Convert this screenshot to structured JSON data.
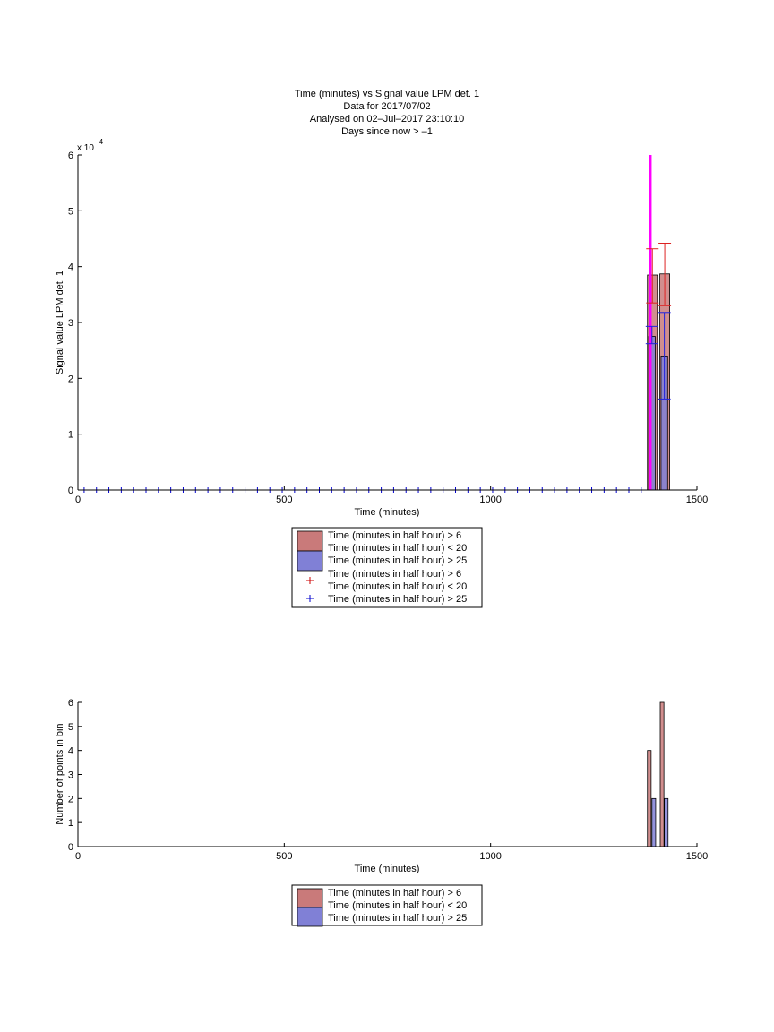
{
  "colors": {
    "red_fill": "#c97a7a",
    "blue_fill": "#8080d6",
    "red_mark": "#cc0000",
    "blue_mark": "#0000cc",
    "magenta_line": "#ff00ff",
    "red_errbar": "#dd2222",
    "blue_errbar": "#2222dd"
  },
  "chart_data": [
    {
      "type": "bar",
      "title_lines": [
        "Time (minutes) vs Signal value LPM det. 1",
        "Data for 2017/07/02",
        "Analysed on 02–Jul–2017 23:10:10",
        "Days since now > –1"
      ],
      "xlabel": "Time (minutes)",
      "ylabel": "Signal value LPM det. 1",
      "y_exponent_label": "x 10",
      "y_exponent": "−4",
      "xlim": [
        0,
        1500
      ],
      "ylim": [
        0,
        6
      ],
      "x_ticks": [
        "0",
        "500",
        "1000",
        "1500"
      ],
      "x_tick_values": [
        0,
        500,
        1000,
        1500
      ],
      "y_ticks": [
        "0",
        "1",
        "2",
        "3",
        "4",
        "5",
        "6"
      ],
      "y_tick_values": [
        0,
        1,
        2,
        3,
        4,
        5,
        6
      ],
      "grid": false,
      "legend_position": "below",
      "legend": [
        "Time (minutes in half hour) > 6",
        "Time (minutes in half hour) < 20",
        "Time (minutes in half hour) > 25",
        "Time (minutes in half hour) > 6",
        "Time (minutes in half hour) < 20",
        "Time (minutes in half hour) > 25"
      ],
      "red_bars": [
        {
          "x0": 1380,
          "x1": 1404,
          "value": 3.85,
          "err_low": 3.35,
          "err_high": 4.32
        },
        {
          "x0": 1410,
          "x1": 1434,
          "value": 3.87,
          "err_low": 3.3,
          "err_high": 4.42
        }
      ],
      "blue_bars": [
        {
          "x0": 1383,
          "x1": 1399,
          "value": 2.75,
          "err_low": 2.62,
          "err_high": 2.93
        },
        {
          "x0": 1413,
          "x1": 1429,
          "value": 2.4,
          "err_low": 1.63,
          "err_high": 3.18
        }
      ],
      "vertical_line": {
        "x": 1387,
        "y_from": 0,
        "y_to": 6
      },
      "blue_markers": {
        "x_start": 15,
        "x_step": 30,
        "count": 46,
        "y": 0
      }
    },
    {
      "type": "bar",
      "xlabel": "Time (minutes)",
      "ylabel": "Number of points in bin",
      "xlim": [
        0,
        1500
      ],
      "ylim": [
        0,
        6
      ],
      "x_ticks": [
        "0",
        "500",
        "1000",
        "1500"
      ],
      "x_tick_values": [
        0,
        500,
        1000,
        1500
      ],
      "y_ticks": [
        "0",
        "1",
        "2",
        "3",
        "4",
        "5",
        "6"
      ],
      "y_tick_values": [
        0,
        1,
        2,
        3,
        4,
        5,
        6
      ],
      "grid": false,
      "legend_position": "below",
      "legend": [
        "Time (minutes in half hour) > 6",
        "Time (minutes in half hour) < 20",
        "Time (minutes in half hour) > 25"
      ],
      "red_bars": [
        {
          "x0": 1380,
          "x1": 1389,
          "value": 4
        },
        {
          "x0": 1411,
          "x1": 1420,
          "value": 6
        }
      ],
      "blue_bars": [
        {
          "x0": 1391,
          "x1": 1400,
          "value": 2
        },
        {
          "x0": 1421,
          "x1": 1430,
          "value": 2
        }
      ]
    }
  ]
}
